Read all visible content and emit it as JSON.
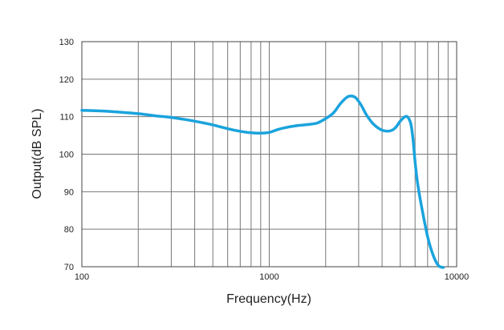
{
  "chart_data": {
    "type": "line",
    "title": "",
    "xlabel": "Frequency(Hz)",
    "ylabel": "Output(dB SPL)",
    "x_scale": "log",
    "xlim": [
      100,
      10000
    ],
    "ylim": [
      70,
      130
    ],
    "grid": true,
    "x_tick_values": [
      100,
      1000,
      10000
    ],
    "x_tick_labels": [
      "100",
      "1000",
      "10000"
    ],
    "y_tick_values": [
      70,
      80,
      90,
      100,
      110,
      120,
      130
    ],
    "y_tick_labels": [
      "70",
      "80",
      "90",
      "100",
      "110",
      "120",
      "130"
    ],
    "color": "#1aa3dd",
    "series": [
      {
        "x": [
          100,
          130,
          160,
          200,
          250,
          300,
          350,
          400,
          450,
          500,
          600,
          700,
          800,
          900,
          1000,
          1100,
          1200,
          1400,
          1600,
          1800,
          2000,
          2200,
          2400,
          2600,
          2750,
          2900,
          3100,
          3300,
          3600,
          4000,
          4400,
          4700,
          5000,
          5300,
          5500,
          5700,
          5850,
          6000,
          6200,
          6500,
          7000,
          7500,
          8000,
          8500
        ],
        "y": [
          111.7,
          111.5,
          111.2,
          110.8,
          110.2,
          109.8,
          109.3,
          108.8,
          108.3,
          107.8,
          106.8,
          106.1,
          105.7,
          105.6,
          105.8,
          106.5,
          107.0,
          107.6,
          107.9,
          108.3,
          109.5,
          111.0,
          113.5,
          115.2,
          115.5,
          115.0,
          113.0,
          110.5,
          108.0,
          106.4,
          106.2,
          107.0,
          108.8,
          110.0,
          109.8,
          108.0,
          104.0,
          98.0,
          92.0,
          86.0,
          78.0,
          73.0,
          70.3,
          69.8
        ]
      }
    ]
  }
}
